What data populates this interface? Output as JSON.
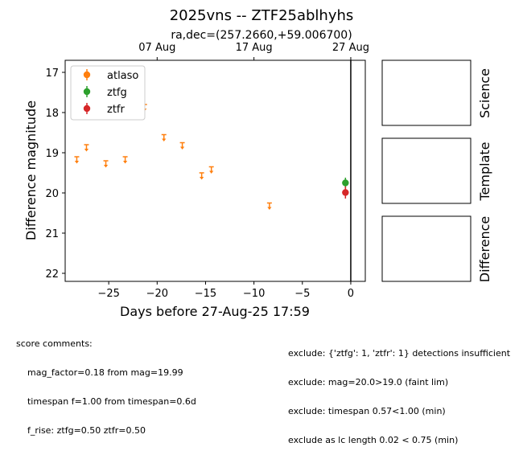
{
  "chart_data": {
    "type": "scatter",
    "title": "2025vns -- ZTF25ablhyhs",
    "subtitle": "ra,dec=(257.2660,+59.006700)",
    "xlabel": "Days before 27-Aug-25 17:59",
    "ylabel": "Difference magnitude",
    "xlim": [
      -29.5,
      1.5
    ],
    "ylim": [
      22.2,
      16.7
    ],
    "x_ticks": [
      -25,
      -20,
      -15,
      -10,
      -5,
      0
    ],
    "x_tick_labels": [
      "−25",
      "−20",
      "−15",
      "−10",
      "−5",
      "0"
    ],
    "y_ticks": [
      17,
      18,
      19,
      20,
      21,
      22
    ],
    "top_axis_ticks": [
      {
        "x": -20,
        "label": "07 Aug"
      },
      {
        "x": -10,
        "label": "17 Aug"
      },
      {
        "x": 0,
        "label": "27 Aug"
      }
    ],
    "vline_x": 0,
    "legend_position": "upper-left",
    "series": [
      {
        "name": "atlaso",
        "color": "#ff7f0e",
        "marker": "upper-limit",
        "points": [
          [
            -28.3,
            19.1
          ],
          [
            -27.3,
            18.8
          ],
          [
            -25.3,
            19.2
          ],
          [
            -23.3,
            19.1
          ],
          [
            -21.3,
            17.8
          ],
          [
            -19.3,
            18.55
          ],
          [
            -17.4,
            18.75
          ],
          [
            -15.4,
            19.5
          ],
          [
            -14.4,
            19.35
          ],
          [
            -8.4,
            20.25
          ]
        ]
      },
      {
        "name": "ztfg",
        "color": "#2ca02c",
        "marker": "point",
        "points": [
          [
            -0.55,
            19.75,
            0.13
          ]
        ]
      },
      {
        "name": "ztfr",
        "color": "#d62728",
        "marker": "point",
        "points": [
          [
            -0.55,
            19.99,
            0.15
          ]
        ]
      }
    ]
  },
  "side_panels": [
    "Science",
    "Template",
    "Difference"
  ],
  "comments_left": [
    "score comments:",
    "    mag_factor=0.18 from mag=19.99",
    "    timespan f=1.00 from timespan=0.6d",
    "    f_rise: ztfg=0.50 ztfr=0.50"
  ],
  "comments_right": [
    "exclude: {'ztfg': 1, 'ztfr': 1} detections insufficient",
    "exclude: mag=20.0>19.0 (faint lim)",
    "exclude: timespan 0.57<1.00 (min)",
    "exclude as lc length 0.02 < 0.75 (min)"
  ]
}
